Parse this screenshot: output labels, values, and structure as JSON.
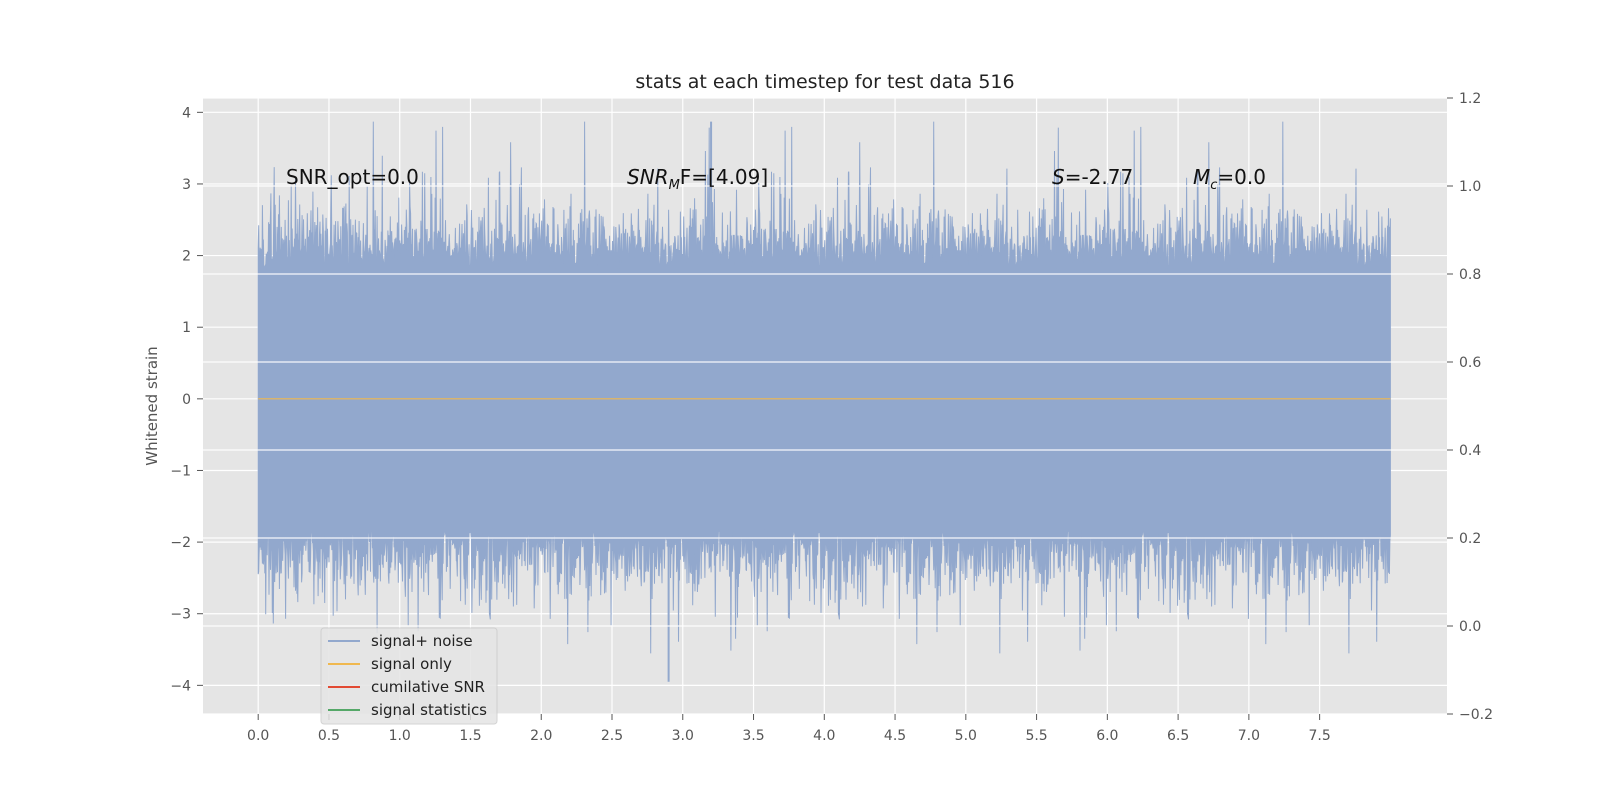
{
  "chart_data": {
    "type": "line",
    "title": "stats at each timestep for test data 516",
    "xlabel": "",
    "ylabel": "Whitened strain",
    "xlim": [
      -0.39,
      8.4
    ],
    "ylim": [
      -4.4,
      4.2
    ],
    "y2lim": [
      -0.2,
      1.2
    ],
    "x_ticks": [
      "0.0",
      "0.5",
      "1.0",
      "1.5",
      "2.0",
      "2.5",
      "3.0",
      "3.5",
      "4.0",
      "4.5",
      "5.0",
      "5.5",
      "6.0",
      "6.5",
      "7.0",
      "7.5"
    ],
    "y_ticks": [
      "4",
      "3",
      "2",
      "1",
      "0",
      "−1",
      "−2",
      "−3",
      "−4"
    ],
    "y2_ticks": [
      "1.2",
      "1.0",
      "0.8",
      "0.6",
      "0.4",
      "0.2",
      "0.0",
      "−0.2"
    ],
    "grid": true,
    "legend_position": "lower-left",
    "noise": {
      "x_range": [
        0.0,
        8.0
      ],
      "typical_range": [
        -1.8,
        1.8
      ],
      "max": 3.87,
      "min": -3.95
    },
    "series": [
      {
        "name": "signal+ noise",
        "color": "#92a8cd",
        "description_values": "noise trace between about -3.95 and 3.87"
      },
      {
        "name": "signal only",
        "color": "#f0b84f",
        "values_constant": 0.0
      },
      {
        "name": "cumilative SNR",
        "color": "#e24a33"
      },
      {
        "name": "signal statistics",
        "color": "#55a868"
      }
    ],
    "annotations": {
      "snr_opt": "SNR_opt=0.0",
      "snr_mf_main": "SNR",
      "snr_mf_sub": "M",
      "snr_mf_rest": "F=[4.09]",
      "s_main": "S",
      "s_rest": "=-2.77",
      "mc_main": "M",
      "mc_sub": "c",
      "mc_rest": "=0.0"
    },
    "colors": {
      "background": "#e5e5e5",
      "grid": "#ffffff",
      "noise": "#92a8cd",
      "signal": "#f0b84f"
    }
  }
}
